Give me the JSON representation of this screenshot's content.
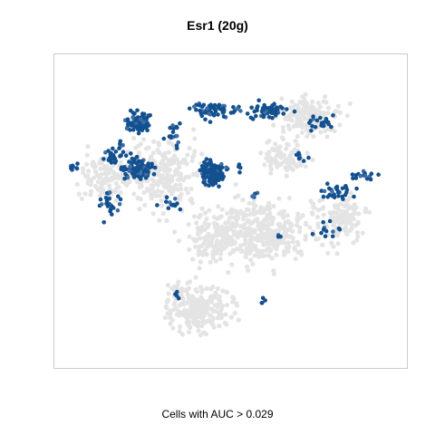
{
  "chart_data": {
    "type": "scatter",
    "title": "Esr1 (20g)",
    "caption": "Cells with AUC > 0.029",
    "xlabel": "",
    "ylabel": "",
    "axes_visible": false,
    "grid": false,
    "xlim": [
      0,
      100
    ],
    "ylim": [
      0,
      100
    ],
    "colors": {
      "background_cells": "#e4e4e4",
      "positive_cells": "#13508f",
      "positive_cells_light": "#3d6ea6",
      "frame": "#cccccc"
    },
    "series": [
      {
        "role": "background-cells",
        "regions": [
          {
            "cx": 57,
            "cy": 43,
            "rx": 24,
            "ry": 16,
            "n": 380
          },
          {
            "cx": 41,
            "cy": 19,
            "rx": 15,
            "ry": 11,
            "n": 240
          },
          {
            "cx": 31,
            "cy": 62,
            "rx": 18,
            "ry": 16,
            "n": 260
          },
          {
            "cx": 15,
            "cy": 61,
            "rx": 9,
            "ry": 13,
            "n": 110
          },
          {
            "cx": 72,
            "cy": 80,
            "rx": 13,
            "ry": 10,
            "n": 150
          },
          {
            "cx": 81,
            "cy": 47,
            "rx": 11,
            "ry": 12,
            "n": 120
          },
          {
            "cx": 65,
            "cy": 67,
            "rx": 9,
            "ry": 8,
            "n": 80
          },
          {
            "cx": 44,
            "cy": 40,
            "rx": 10,
            "ry": 9,
            "n": 80
          }
        ]
      },
      {
        "role": "positive-cells",
        "regions": [
          {
            "cx": 45,
            "cy": 62,
            "rx": 5,
            "ry": 5,
            "n": 140
          },
          {
            "cx": 24,
            "cy": 78,
            "rx": 5,
            "ry": 5,
            "n": 90
          },
          {
            "cx": 24,
            "cy": 63,
            "rx": 7,
            "ry": 5,
            "n": 75
          },
          {
            "cx": 45,
            "cy": 82,
            "rx": 10,
            "ry": 4,
            "n": 60
          },
          {
            "cx": 61,
            "cy": 82,
            "rx": 8,
            "ry": 5,
            "n": 55
          },
          {
            "cx": 75,
            "cy": 78,
            "rx": 5,
            "ry": 4,
            "n": 22
          },
          {
            "cx": 17,
            "cy": 68,
            "rx": 6,
            "ry": 5,
            "n": 30
          },
          {
            "cx": 6,
            "cy": 64,
            "rx": 2,
            "ry": 2,
            "n": 8
          },
          {
            "cx": 16,
            "cy": 52,
            "rx": 4,
            "ry": 6,
            "n": 25
          },
          {
            "cx": 34,
            "cy": 74,
            "rx": 3,
            "ry": 6,
            "n": 18
          },
          {
            "cx": 80,
            "cy": 56,
            "rx": 8,
            "ry": 4,
            "n": 28
          },
          {
            "cx": 88,
            "cy": 61,
            "rx": 7,
            "ry": 2,
            "n": 15
          },
          {
            "cx": 77,
            "cy": 43,
            "rx": 5,
            "ry": 6,
            "n": 12
          },
          {
            "cx": 57,
            "cy": 55,
            "rx": 2,
            "ry": 2,
            "n": 6
          },
          {
            "cx": 33,
            "cy": 52,
            "rx": 5,
            "ry": 3,
            "n": 12
          },
          {
            "cx": 70,
            "cy": 67,
            "rx": 3,
            "ry": 4,
            "n": 8
          },
          {
            "cx": 35,
            "cy": 23,
            "rx": 2,
            "ry": 2,
            "n": 4
          },
          {
            "cx": 59,
            "cy": 21,
            "rx": 2,
            "ry": 2,
            "n": 4
          },
          {
            "cx": 64,
            "cy": 42,
            "rx": 2,
            "ry": 2,
            "n": 4
          },
          {
            "cx": 53,
            "cy": 63,
            "rx": 2,
            "ry": 2,
            "n": 4
          }
        ]
      }
    ]
  }
}
